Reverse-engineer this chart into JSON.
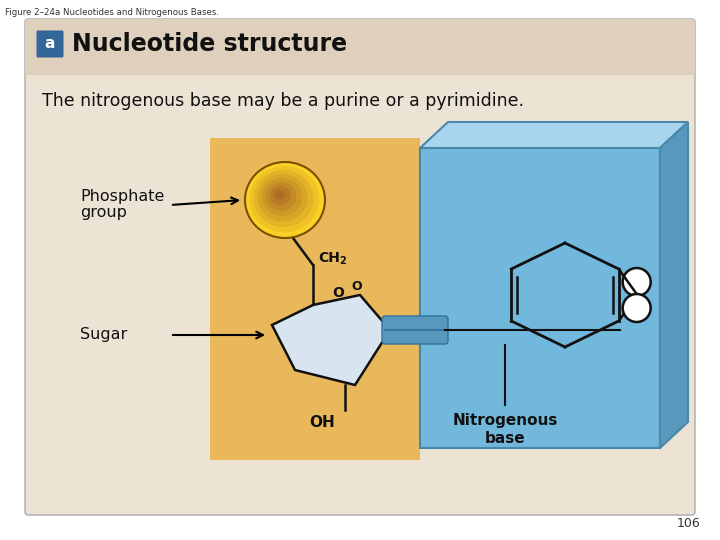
{
  "fig_caption": "Figure 2–24a Nucleotides and Nitrogenous Bases.",
  "section_label": "a",
  "section_title": "Nucleotide structure",
  "subtitle": "The nitrogenous base may be a purine or a pyrimidine.",
  "label_phosphate": "Phosphate\ngroup",
  "label_sugar": "Sugar",
  "label_nitrogenous": "Nitrogenous\nbase",
  "label_ch2": "CH",
  "label_ch2_sub": "2",
  "label_o_ring": "O",
  "label_oh": "OH",
  "page_number": "106",
  "bg_color": "#ede3d5",
  "header_bg": "#ded0bc",
  "box_border": "#aaaaaa",
  "orange_bg": "#e8b85a",
  "blue_face": "#72b8dc",
  "blue_top": "#a8d4ee",
  "blue_right": "#5898bc",
  "blue_edge": "#4888aa",
  "phosphate_grad_center": "#f8e060",
  "phosphate_grad_edge": "#c88010",
  "sugar_fill": "#d8e4f0",
  "connector_blue": "#5898bc",
  "connector_dark": "#3070a0",
  "white_circle": "#ffffff",
  "fig_bg": "#ffffff",
  "header_label_bg": "#336699",
  "header_label_fg": "#ffffff",
  "arrow_color": "#000000",
  "line_color": "#111111",
  "text_color": "#111111",
  "caption_color": "#333333",
  "fig_width": 7.2,
  "fig_height": 5.4
}
